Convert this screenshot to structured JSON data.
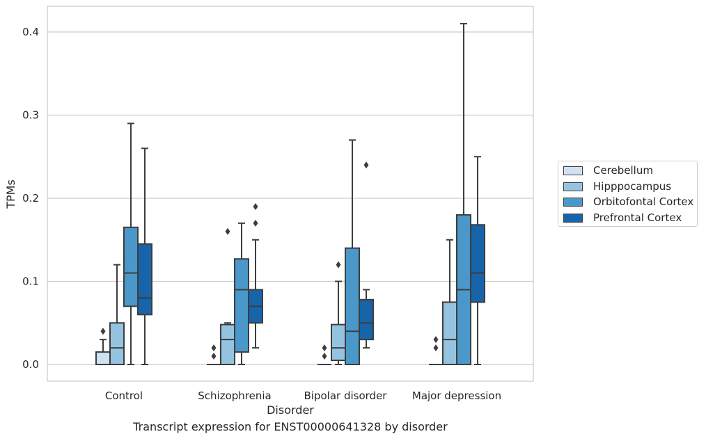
{
  "chart_data": {
    "type": "box",
    "title": "",
    "caption": "Transcript expression for ENST00000641328 by disorder",
    "xlabel": "Disorder",
    "ylabel": "TPMs",
    "ylim": [
      -0.02,
      0.43
    ],
    "yticks": [
      "0.0",
      "0.1",
      "0.2",
      "0.3",
      "0.4"
    ],
    "ytick_values": [
      0.0,
      0.1,
      0.2,
      0.3,
      0.4
    ],
    "grid": true,
    "legend_position": "right",
    "categories": [
      "Control",
      "Schizophrenia",
      "Bipolar disorder",
      "Major depression"
    ],
    "series": [
      {
        "name": "Cerebellum",
        "color": "#d0e1f2",
        "boxes": [
          {
            "q1": 0.0,
            "median": 0.0,
            "q3": 0.015,
            "whisker_low": 0.0,
            "whisker_high": 0.03,
            "outliers": [
              0.04
            ]
          },
          {
            "q1": 0.0,
            "median": 0.0,
            "q3": 0.0,
            "whisker_low": 0.0,
            "whisker_high": 0.0,
            "outliers": [
              0.01,
              0.02
            ]
          },
          {
            "q1": 0.0,
            "median": 0.0,
            "q3": 0.0,
            "whisker_low": 0.0,
            "whisker_high": 0.0,
            "outliers": [
              0.01,
              0.02
            ]
          },
          {
            "q1": 0.0,
            "median": 0.0,
            "q3": 0.0,
            "whisker_low": 0.0,
            "whisker_high": 0.0,
            "outliers": [
              0.02,
              0.03
            ]
          }
        ]
      },
      {
        "name": "Hipppocampus",
        "color": "#94c4df",
        "boxes": [
          {
            "q1": 0.0,
            "median": 0.02,
            "q3": 0.05,
            "whisker_low": 0.0,
            "whisker_high": 0.12,
            "outliers": []
          },
          {
            "q1": 0.0,
            "median": 0.03,
            "q3": 0.048,
            "whisker_low": 0.0,
            "whisker_high": 0.05,
            "outliers": [
              0.16
            ]
          },
          {
            "q1": 0.005,
            "median": 0.02,
            "q3": 0.048,
            "whisker_low": 0.0,
            "whisker_high": 0.1,
            "outliers": [
              0.12
            ]
          },
          {
            "q1": 0.0,
            "median": 0.03,
            "q3": 0.075,
            "whisker_low": 0.0,
            "whisker_high": 0.15,
            "outliers": []
          }
        ]
      },
      {
        "name": "Orbitofontal Cortex",
        "color": "#4a98c9",
        "boxes": [
          {
            "q1": 0.07,
            "median": 0.11,
            "q3": 0.165,
            "whisker_low": 0.0,
            "whisker_high": 0.29,
            "outliers": []
          },
          {
            "q1": 0.015,
            "median": 0.09,
            "q3": 0.127,
            "whisker_low": 0.0,
            "whisker_high": 0.17,
            "outliers": []
          },
          {
            "q1": 0.0,
            "median": 0.04,
            "q3": 0.14,
            "whisker_low": 0.0,
            "whisker_high": 0.27,
            "outliers": []
          },
          {
            "q1": 0.0,
            "median": 0.09,
            "q3": 0.18,
            "whisker_low": 0.0,
            "whisker_high": 0.41,
            "outliers": []
          }
        ]
      },
      {
        "name": "Prefrontal Cortex",
        "color": "#1764ab",
        "boxes": [
          {
            "q1": 0.06,
            "median": 0.08,
            "q3": 0.145,
            "whisker_low": 0.0,
            "whisker_high": 0.26,
            "outliers": []
          },
          {
            "q1": 0.05,
            "median": 0.07,
            "q3": 0.09,
            "whisker_low": 0.02,
            "whisker_high": 0.15,
            "outliers": [
              0.17,
              0.19
            ]
          },
          {
            "q1": 0.03,
            "median": 0.05,
            "q3": 0.078,
            "whisker_low": 0.02,
            "whisker_high": 0.09,
            "outliers": [
              0.24
            ]
          },
          {
            "q1": 0.075,
            "median": 0.11,
            "q3": 0.168,
            "whisker_low": 0.0,
            "whisker_high": 0.25,
            "outliers": []
          }
        ]
      }
    ]
  }
}
